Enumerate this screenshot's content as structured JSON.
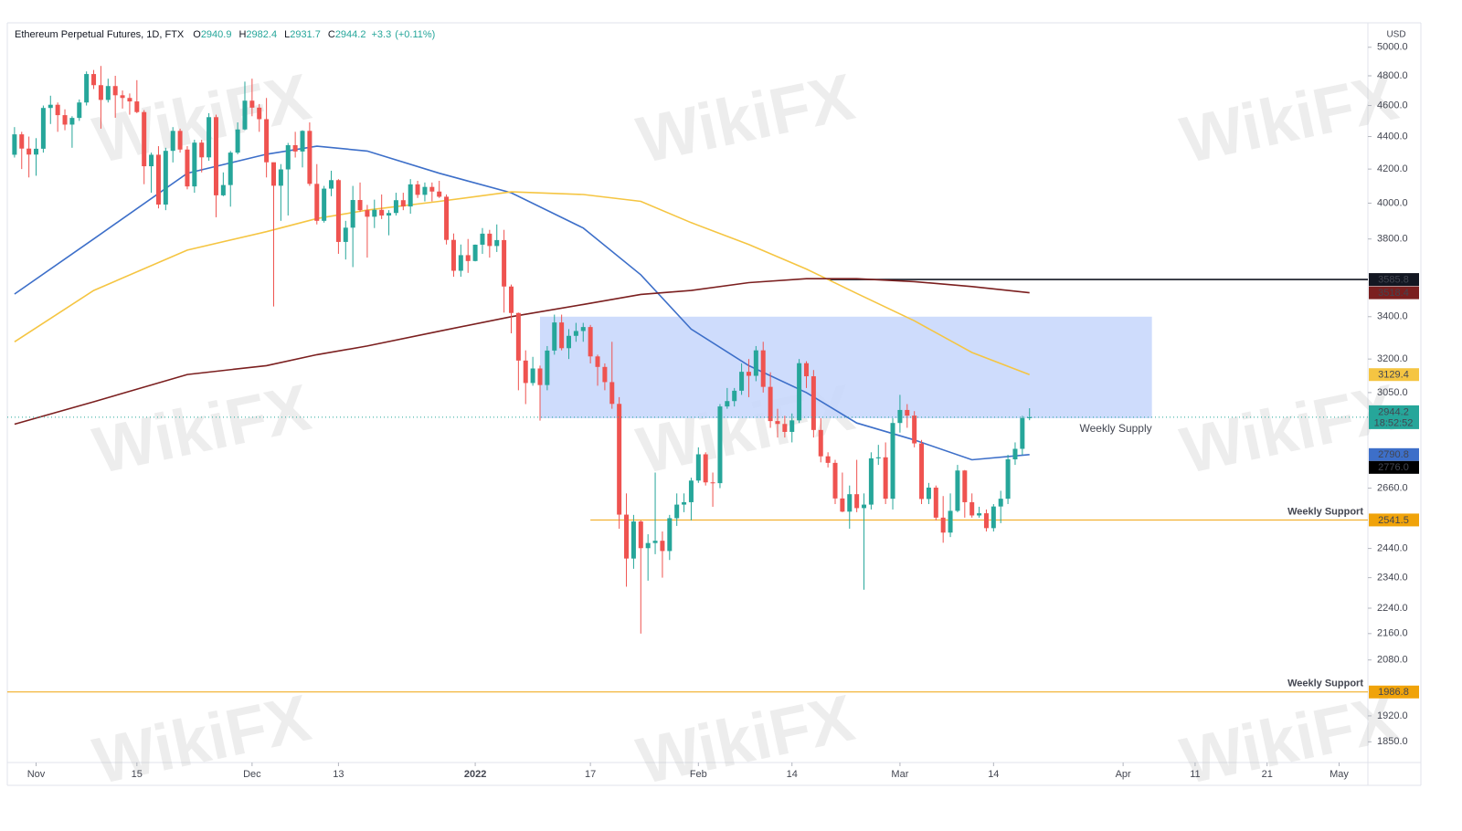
{
  "chart_data": {
    "type": "candlestick",
    "title": "Ethereum Perpetual Futures, 1D, FTX",
    "ohlc_letters": [
      "O",
      "H",
      "L",
      "C"
    ],
    "change_label": "+3.3",
    "change_pct_label": "(+0.11%)",
    "currency": "USD",
    "countdown": "18:52:52",
    "watermark": "WikiFX",
    "up_color": "#26a69a",
    "down_color": "#ef5350",
    "log_scale": true,
    "grid": false,
    "xlim": [
      "2021-10-28",
      "2022-05-05"
    ],
    "ylim": [
      1796,
      5178
    ],
    "yticks": [
      {
        "value": 5000,
        "label": "5000.0"
      },
      {
        "value": 4800,
        "label": "4800.0"
      },
      {
        "value": 4600,
        "label": "4600.0"
      },
      {
        "value": 4400,
        "label": "4400.0"
      },
      {
        "value": 4200,
        "label": "4200.0"
      },
      {
        "value": 4000,
        "label": "4000.0"
      },
      {
        "value": 3800,
        "label": "3800.0"
      },
      {
        "value": 3400,
        "label": "3400.0"
      },
      {
        "value": 3200,
        "label": "3200.0"
      },
      {
        "value": 3050,
        "label": "3050.0"
      },
      {
        "value": 2660,
        "label": "2660.0"
      },
      {
        "value": 2440,
        "label": "2440.0"
      },
      {
        "value": 2340,
        "label": "2340.0"
      },
      {
        "value": 2240,
        "label": "2240.0"
      },
      {
        "value": 2160,
        "label": "2160.0"
      },
      {
        "value": 2080,
        "label": "2080.0"
      },
      {
        "value": 1920,
        "label": "1920.0"
      },
      {
        "value": 1850,
        "label": "1850.0"
      }
    ],
    "xticks": [
      {
        "value": "2021-11-01",
        "label": "Nov"
      },
      {
        "value": "2021-11-15",
        "label": "15"
      },
      {
        "value": "2021-12-01",
        "label": "Dec"
      },
      {
        "value": "2021-12-13",
        "label": "13"
      },
      {
        "value": "2022-01-01",
        "label": "2022",
        "bold": true
      },
      {
        "value": "2022-01-17",
        "label": "17"
      },
      {
        "value": "2022-02-01",
        "label": "Feb"
      },
      {
        "value": "2022-02-14",
        "label": "14"
      },
      {
        "value": "2022-03-01",
        "label": "Mar"
      },
      {
        "value": "2022-03-14",
        "label": "14"
      },
      {
        "value": "2022-04-01",
        "label": "Apr"
      },
      {
        "value": "2022-04-11",
        "label": "11"
      },
      {
        "value": "2022-04-21",
        "label": "21"
      },
      {
        "value": "2022-05-01",
        "label": "May"
      }
    ],
    "x": [
      "2021-10-29",
      "2021-10-30",
      "2021-10-31",
      "2021-11-01",
      "2021-11-02",
      "2021-11-03",
      "2021-11-04",
      "2021-11-05",
      "2021-11-06",
      "2021-11-07",
      "2021-11-08",
      "2021-11-09",
      "2021-11-10",
      "2021-11-11",
      "2021-11-12",
      "2021-11-13",
      "2021-11-14",
      "2021-11-15",
      "2021-11-16",
      "2021-11-17",
      "2021-11-18",
      "2021-11-19",
      "2021-11-20",
      "2021-11-21",
      "2021-11-22",
      "2021-11-23",
      "2021-11-24",
      "2021-11-25",
      "2021-11-26",
      "2021-11-27",
      "2021-11-28",
      "2021-11-29",
      "2021-11-30",
      "2021-12-01",
      "2021-12-02",
      "2021-12-03",
      "2021-12-04",
      "2021-12-05",
      "2021-12-06",
      "2021-12-07",
      "2021-12-08",
      "2021-12-09",
      "2021-12-10",
      "2021-12-11",
      "2021-12-12",
      "2021-12-13",
      "2021-12-14",
      "2021-12-15",
      "2021-12-16",
      "2021-12-17",
      "2021-12-18",
      "2021-12-19",
      "2021-12-20",
      "2021-12-21",
      "2021-12-22",
      "2021-12-23",
      "2021-12-24",
      "2021-12-25",
      "2021-12-26",
      "2021-12-27",
      "2021-12-28",
      "2021-12-29",
      "2021-12-30",
      "2021-12-31",
      "2022-01-01",
      "2022-01-02",
      "2022-01-03",
      "2022-01-04",
      "2022-01-05",
      "2022-01-06",
      "2022-01-07",
      "2022-01-08",
      "2022-01-09",
      "2022-01-10",
      "2022-01-11",
      "2022-01-12",
      "2022-01-13",
      "2022-01-14",
      "2022-01-15",
      "2022-01-16",
      "2022-01-17",
      "2022-01-18",
      "2022-01-19",
      "2022-01-20",
      "2022-01-21",
      "2022-01-22",
      "2022-01-23",
      "2022-01-24",
      "2022-01-25",
      "2022-01-26",
      "2022-01-27",
      "2022-01-28",
      "2022-01-29",
      "2022-01-30",
      "2022-01-31",
      "2022-02-01",
      "2022-02-02",
      "2022-02-03",
      "2022-02-04",
      "2022-02-05",
      "2022-02-06",
      "2022-02-07",
      "2022-02-08",
      "2022-02-09",
      "2022-02-10",
      "2022-02-11",
      "2022-02-12",
      "2022-02-13",
      "2022-02-14",
      "2022-02-15",
      "2022-02-16",
      "2022-02-17",
      "2022-02-18",
      "2022-02-19",
      "2022-02-20",
      "2022-02-21",
      "2022-02-22",
      "2022-02-23",
      "2022-02-24",
      "2022-02-25",
      "2022-02-26",
      "2022-02-27",
      "2022-02-28",
      "2022-03-01",
      "2022-03-02",
      "2022-03-03",
      "2022-03-04",
      "2022-03-05",
      "2022-03-06",
      "2022-03-07",
      "2022-03-08",
      "2022-03-09",
      "2022-03-10",
      "2022-03-11",
      "2022-03-12",
      "2022-03-13",
      "2022-03-14",
      "2022-03-15",
      "2022-03-16",
      "2022-03-17",
      "2022-03-18",
      "2022-03-19"
    ],
    "open": [
      4287,
      4414,
      4325,
      4288,
      4324,
      4584,
      4605,
      4537,
      4476,
      4519,
      4620,
      4812,
      4736,
      4637,
      4730,
      4668,
      4650,
      4627,
      4557,
      4217,
      4287,
      3992,
      4311,
      4436,
      4319,
      4097,
      4362,
      4271,
      4524,
      4045,
      4105,
      4300,
      4445,
      4632,
      4586,
      4511,
      4241,
      4101,
      4198,
      4346,
      4307,
      4436,
      4112,
      3900,
      4084,
      4134,
      3784,
      3862,
      4018,
      3960,
      3923,
      3962,
      3930,
      3944,
      4017,
      3981,
      4109,
      4048,
      4094,
      4067,
      4037,
      3795,
      3631,
      3713,
      3682,
      3769,
      3829,
      3762,
      3794,
      3550,
      3418,
      3193,
      3092,
      3157,
      3083,
      3239,
      3372,
      3250,
      3308,
      3331,
      3350,
      3212,
      3164,
      3096,
      3001,
      2561,
      2405,
      2536,
      2441,
      2459,
      2467,
      2431,
      2548,
      2598,
      2607,
      2689,
      2792,
      2682,
      2679,
      2990,
      3013,
      3058,
      3142,
      3124,
      3240,
      3075,
      2928,
      2916,
      2883,
      2931,
      3181,
      3122,
      2891,
      2784,
      2758,
      2621,
      2572,
      2637,
      2585,
      2598,
      2776,
      2780,
      2620,
      2920,
      2975,
      2951,
      2836,
      2619,
      2662,
      2550,
      2496,
      2575,
      2728,
      2607,
      2558,
      2566,
      2512,
      2591,
      2620,
      2772,
      2814,
      2940.9
    ],
    "high": [
      4460,
      4430,
      4400,
      4390,
      4600,
      4665,
      4620,
      4575,
      4530,
      4640,
      4830,
      4840,
      4868,
      4780,
      4800,
      4700,
      4680,
      4770,
      4570,
      4300,
      4340,
      4330,
      4460,
      4450,
      4340,
      4380,
      4380,
      4550,
      4540,
      4180,
      4310,
      4490,
      4760,
      4780,
      4610,
      4650,
      4240,
      4230,
      4360,
      4430,
      4440,
      4490,
      4230,
      4100,
      4190,
      4140,
      3900,
      4100,
      4120,
      3990,
      4020,
      4050,
      3960,
      4060,
      4060,
      4140,
      4130,
      4120,
      4120,
      4130,
      4050,
      3830,
      3770,
      3800,
      3770,
      3860,
      3850,
      3880,
      3850,
      3560,
      3420,
      3240,
      3210,
      3170,
      3260,
      3410,
      3410,
      3340,
      3370,
      3370,
      3360,
      3220,
      3180,
      3280,
      3030,
      2640,
      2560,
      2540,
      2490,
      2720,
      2500,
      2560,
      2640,
      2640,
      2700,
      2820,
      2800,
      2720,
      3000,
      3070,
      3070,
      3180,
      3200,
      3260,
      3280,
      3140,
      2980,
      2950,
      2960,
      3200,
      3190,
      3150,
      2940,
      2800,
      2770,
      2720,
      2670,
      2770,
      2640,
      2800,
      2830,
      2840,
      2940,
      3040,
      3000,
      2970,
      2850,
      2680,
      2670,
      2630,
      2640,
      2750,
      2730,
      2640,
      2590,
      2580,
      2600,
      2650,
      2790,
      2840,
      2950,
      2982.4
    ],
    "low": [
      4270,
      4200,
      4150,
      4160,
      4300,
      4480,
      4430,
      4440,
      4330,
      4500,
      4600,
      4710,
      4450,
      4620,
      4520,
      4580,
      4540,
      4550,
      4110,
      4060,
      3970,
      3960,
      4240,
      4300,
      4080,
      4060,
      4180,
      4250,
      3920,
      4040,
      3980,
      4290,
      4440,
      4530,
      4430,
      4150,
      3450,
      3900,
      3930,
      4270,
      4210,
      4100,
      3880,
      3890,
      4040,
      3720,
      3690,
      3650,
      3950,
      3700,
      3860,
      3910,
      3820,
      3930,
      3960,
      3940,
      4030,
      4010,
      4010,
      4030,
      3770,
      3600,
      3600,
      3620,
      3680,
      3720,
      3700,
      3730,
      3420,
      3320,
      3060,
      3000,
      3080,
      2930,
      3060,
      3220,
      3240,
      3200,
      3280,
      3280,
      3180,
      3080,
      3060,
      2980,
      2510,
      2310,
      2370,
      2160,
      2330,
      2420,
      2340,
      2400,
      2520,
      2570,
      2540,
      2680,
      2670,
      2590,
      2660,
      2980,
      2990,
      3040,
      3030,
      3100,
      3050,
      2900,
      2860,
      2860,
      2840,
      2920,
      3070,
      2860,
      2760,
      2740,
      2600,
      2570,
      2510,
      2570,
      2300,
      2580,
      2750,
      2600,
      2580,
      2880,
      2900,
      2820,
      2600,
      2600,
      2540,
      2460,
      2480,
      2570,
      2550,
      2550,
      2550,
      2500,
      2500,
      2530,
      2600,
      2750,
      2790,
      2931.7
    ],
    "close": [
      4414,
      4325,
      4288,
      4324,
      4584,
      4605,
      4537,
      4476,
      4519,
      4620,
      4812,
      4736,
      4637,
      4730,
      4668,
      4650,
      4627,
      4557,
      4217,
      4287,
      3992,
      4311,
      4436,
      4319,
      4097,
      4362,
      4271,
      4524,
      4045,
      4105,
      4300,
      4445,
      4632,
      4586,
      4511,
      4241,
      4101,
      4198,
      4346,
      4307,
      4436,
      4112,
      3900,
      4084,
      4134,
      3784,
      3862,
      4018,
      3960,
      3923,
      3962,
      3930,
      3944,
      4017,
      3981,
      4109,
      4048,
      4094,
      4067,
      4037,
      3795,
      3631,
      3713,
      3682,
      3769,
      3829,
      3762,
      3794,
      3550,
      3418,
      3193,
      3092,
      3157,
      3083,
      3239,
      3372,
      3250,
      3308,
      3331,
      3350,
      3212,
      3164,
      3096,
      3001,
      2561,
      2405,
      2536,
      2441,
      2459,
      2467,
      2431,
      2548,
      2598,
      2607,
      2689,
      2792,
      2682,
      2679,
      2990,
      3013,
      3058,
      3142,
      3124,
      3240,
      3075,
      2928,
      2916,
      2883,
      2931,
      3181,
      3122,
      2891,
      2784,
      2758,
      2621,
      2572,
      2637,
      2585,
      2598,
      2776,
      2780,
      2620,
      2920,
      2975,
      2951,
      2836,
      2619,
      2662,
      2550,
      2496,
      2575,
      2728,
      2607,
      2558,
      2566,
      2512,
      2591,
      2620,
      2772,
      2814,
      2940.9,
      2944.2
    ],
    "moving_averages": [
      {
        "color": "#3d6fc9",
        "x": [
          "2021-10-29",
          "2021-11-09",
          "2021-11-22",
          "2021-12-03",
          "2021-12-10",
          "2021-12-17",
          "2021-12-27",
          "2022-01-06",
          "2022-01-16",
          "2022-01-24",
          "2022-01-31",
          "2022-02-08",
          "2022-02-16",
          "2022-02-23",
          "2022-03-03",
          "2022-03-11",
          "2022-03-19"
        ],
        "values": [
          3512,
          3800,
          4175,
          4290,
          4340,
          4310,
          4175,
          4060,
          3860,
          3610,
          3340,
          3170,
          3050,
          2920,
          2850,
          2770,
          2790.8
        ]
      },
      {
        "color": "#f5c542",
        "x": [
          "2021-10-29",
          "2021-11-09",
          "2021-11-22",
          "2021-12-03",
          "2021-12-10",
          "2021-12-17",
          "2021-12-27",
          "2022-01-06",
          "2022-01-16",
          "2022-01-24",
          "2022-01-31",
          "2022-02-08",
          "2022-02-16",
          "2022-02-23",
          "2022-03-03",
          "2022-03-11",
          "2022-03-19"
        ],
        "values": [
          3280,
          3530,
          3740,
          3840,
          3913,
          3960,
          4010,
          4065,
          4050,
          4010,
          3890,
          3770,
          3640,
          3515,
          3380,
          3230,
          3129.4
        ]
      },
      {
        "color": "#7b1f1f",
        "x": [
          "2021-10-29",
          "2021-11-09",
          "2021-11-22",
          "2021-12-03",
          "2021-12-10",
          "2021-12-17",
          "2021-12-27",
          "2022-01-06",
          "2022-01-16",
          "2022-01-24",
          "2022-01-31",
          "2022-02-08",
          "2022-02-16",
          "2022-02-23",
          "2022-03-03",
          "2022-03-11",
          "2022-03-19"
        ],
        "values": [
          2915,
          3010,
          3130,
          3170,
          3220,
          3260,
          3330,
          3400,
          3460,
          3510,
          3530,
          3570,
          3590,
          3590,
          3575,
          3550,
          3518.4
        ]
      }
    ],
    "zone": {
      "x0": "2022-01-10",
      "x1": "2022-04-05",
      "y0": 2940,
      "y1": 3400,
      "color": "#c6d6fb",
      "label": "Weekly Supply",
      "label_color": "#9c27b0"
    },
    "lines": [
      {
        "value": 3585.8,
        "start": "2022-02-19",
        "color": "#131722"
      },
      {
        "value": 2541.5,
        "start": "2022-01-17",
        "color": "#f0a30a",
        "label": "Weekly Support"
      },
      {
        "value": 1986.8,
        "start": "2021-10-28",
        "color": "#f0a30a",
        "label": "Weekly Support"
      }
    ],
    "extra_price_labels": [
      {
        "value": 2776,
        "label": "2776.0",
        "color": "#000000"
      }
    ]
  }
}
